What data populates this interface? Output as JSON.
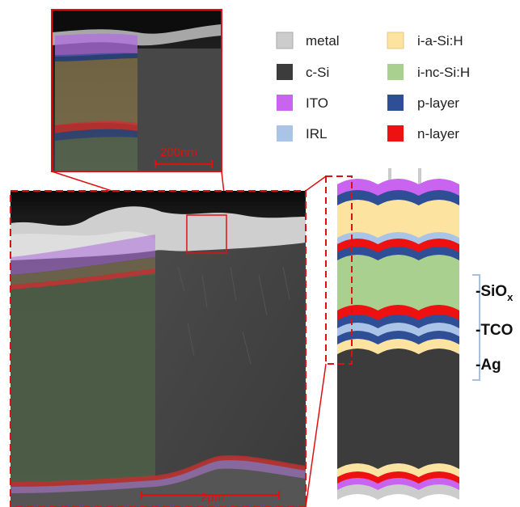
{
  "legend": {
    "items": [
      {
        "label": "metal",
        "color": "#cccccc"
      },
      {
        "label": "c-Si",
        "color": "#3c3c3c"
      },
      {
        "label": "ITO",
        "color": "#c864f0"
      },
      {
        "label": "IRL",
        "color": "#aac4e8"
      },
      {
        "label": "i-a-Si:H",
        "color": "#fde3a0"
      },
      {
        "label": "i-nc-Si:H",
        "color": "#a9d08e"
      },
      {
        "label": "p-layer",
        "color": "#2e4f96"
      },
      {
        "label": "n-layer",
        "color": "#ee1111"
      }
    ]
  },
  "scale_bars": {
    "inset": "200nm",
    "main": "2μm"
  },
  "side_labels": {
    "sio_prefix": "-SiO",
    "sio_sub": "x",
    "tco": "-TCO",
    "ag": "-Ag"
  },
  "colors": {
    "highlight": "#e01010",
    "background": "#ffffff"
  }
}
